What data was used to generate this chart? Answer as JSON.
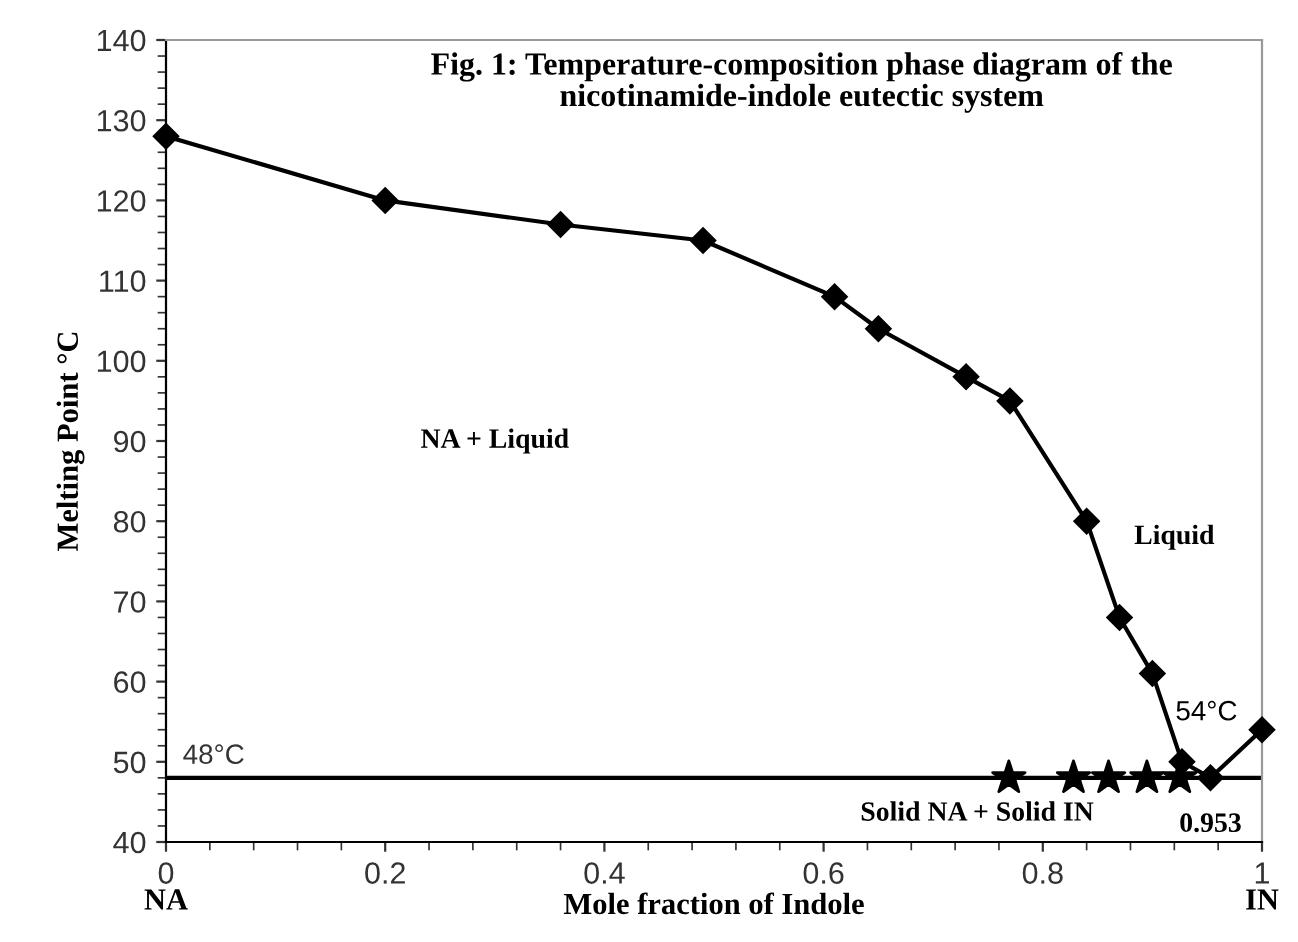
{
  "chart_data": {
    "type": "line",
    "title": "Fig. 1: Temperature-composition phase diagram of the\nnicotinamide-indole eutectic system",
    "xlabel": "Mole fraction of Indole",
    "ylabel": "Melting Point °C",
    "series": [
      {
        "color": "#000000",
        "marker": "diamond",
        "x": [
          0,
          0.2,
          0.36,
          0.49,
          0.61,
          0.65,
          0.73,
          0.77,
          0.84,
          0.87,
          0.9,
          0.927,
          0.953,
          1
        ],
        "values": [
          128,
          120,
          117,
          115,
          108,
          104,
          98,
          95,
          80,
          68,
          61,
          50,
          48,
          54
        ]
      },
      {
        "type": "scatter",
        "color": "#000000",
        "marker": "star",
        "x": [
          0.769,
          0.828,
          0.86,
          0.895,
          0.925
        ],
        "values": [
          48,
          48,
          48,
          48,
          48
        ]
      }
    ],
    "ref_lines": [
      {
        "axis": "y",
        "value": 48,
        "label": "48°C",
        "color": "#000000"
      }
    ],
    "annotations": [
      "NA + Liquid",
      "Liquid",
      "Solid NA + Solid IN",
      {
        "text": "0.953",
        "x": 0.953,
        "y": 48
      },
      {
        "text": "54°C",
        "x": 1,
        "y": 54
      },
      "NA",
      "IN"
    ],
    "xlim": [
      0,
      1
    ],
    "ylim": [
      40,
      140
    ],
    "xticks": [
      0,
      0.2,
      0.4,
      0.6,
      0.8,
      1
    ],
    "yticks": [
      40,
      50,
      60,
      70,
      80,
      90,
      100,
      110,
      120,
      130,
      140
    ],
    "grid": false,
    "legend": false
  }
}
